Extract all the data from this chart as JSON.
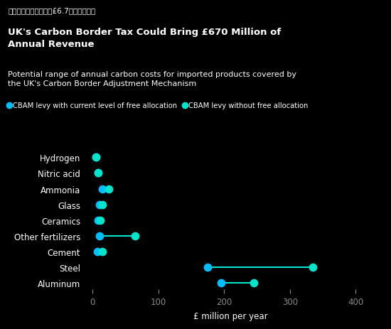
{
  "title_bold": "UK's Carbon Border Tax Could Bring £670 Million of\nAnnual Revenue",
  "subtitle": "Potential range of annual carbon costs for imported products covered by\nthe UK's Carbon Border Adjustment Mechanism",
  "chinese_title": "英国碳边境税将可带来£6.7亿英镑年收入",
  "xlabel": "£ million per year",
  "legend_label1": "CBAM levy with current level of free allocation",
  "legend_label2": "CBAM levy without free allocation",
  "color_with_free": "#00BFFF",
  "color_without_free": "#00E5CC",
  "line_color": "#00E5CC",
  "bg_color": "#000000",
  "text_color": "#FFFFFF",
  "categories": [
    "Hydrogen",
    "Nitric acid",
    "Ammonia",
    "Glass",
    "Ceramics",
    "Other fertilizers",
    "Cement",
    "Steel",
    "Aluminum"
  ],
  "with_free": [
    5,
    8,
    15,
    10,
    8,
    10,
    7,
    175,
    195
  ],
  "without_free": [
    5,
    8,
    25,
    15,
    12,
    65,
    15,
    335,
    245
  ],
  "xlim": [
    -10,
    430
  ],
  "xticks": [
    0,
    100,
    200,
    300,
    400
  ]
}
